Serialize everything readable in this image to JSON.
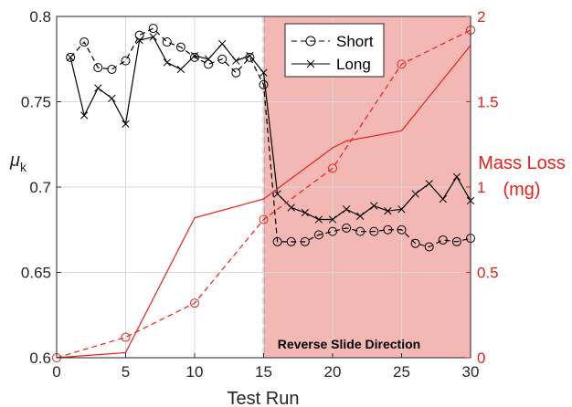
{
  "chart_data": {
    "type": "line",
    "title": "",
    "xlabel": "Test Run",
    "ylabel_left": "μ",
    "ylabel_left_subscript": "k",
    "ylabel_right_line1": "Mass Loss",
    "ylabel_right_line2": "(mg)",
    "xlim": [
      0,
      30
    ],
    "ylim_left": [
      0.6,
      0.8
    ],
    "ylim_right": [
      0,
      2
    ],
    "grid": true,
    "x_ticks": [
      0,
      5,
      10,
      15,
      20,
      25,
      30
    ],
    "x_tick_labels": [
      "0",
      "5",
      "10",
      "15",
      "20",
      "25",
      "30"
    ],
    "y_left_ticks": [
      0.6,
      0.65,
      0.7,
      0.75,
      0.8
    ],
    "y_left_tick_labels": [
      "0.6",
      "0.65",
      "0.7",
      "0.75",
      "0.8"
    ],
    "y_right_ticks": [
      0,
      0.5,
      1,
      1.5,
      2
    ],
    "y_right_tick_labels": [
      "0",
      "0.5",
      "1",
      "1.5",
      "2"
    ],
    "region": {
      "x_start": 15,
      "x_end": 30,
      "label": "Reverse Slide Direction",
      "color": "#f4b8b4"
    },
    "legend": {
      "placement": "top-right",
      "entries": [
        "Short",
        "Long"
      ]
    },
    "series": [
      {
        "name": "Short",
        "axis": "left",
        "marker": "circle",
        "dash": true,
        "color": "#000000",
        "x": [
          1,
          2,
          3,
          4,
          5,
          6,
          7,
          8,
          9,
          10,
          11,
          12,
          13,
          14,
          15,
          16,
          17,
          18,
          19,
          20,
          21,
          22,
          23,
          24,
          25,
          26,
          27,
          28,
          29,
          30
        ],
        "values": [
          0.776,
          0.785,
          0.77,
          0.769,
          0.774,
          0.789,
          0.793,
          0.785,
          0.782,
          0.776,
          0.772,
          0.775,
          0.767,
          0.776,
          0.76,
          0.668,
          0.668,
          0.668,
          0.672,
          0.674,
          0.676,
          0.674,
          0.674,
          0.675,
          0.675,
          0.667,
          0.665,
          0.669,
          0.668,
          0.67
        ]
      },
      {
        "name": "Long",
        "axis": "left",
        "marker": "x",
        "dash": false,
        "color": "#000000",
        "x": [
          1,
          2,
          3,
          4,
          5,
          6,
          7,
          8,
          9,
          10,
          11,
          12,
          13,
          14,
          15,
          16,
          17,
          18,
          19,
          20,
          21,
          22,
          23,
          24,
          25,
          26,
          27,
          28,
          29,
          30
        ],
        "values": [
          0.776,
          0.742,
          0.758,
          0.752,
          0.737,
          0.786,
          0.788,
          0.773,
          0.769,
          0.777,
          0.775,
          0.784,
          0.774,
          0.777,
          0.767,
          0.696,
          0.688,
          0.685,
          0.681,
          0.681,
          0.687,
          0.683,
          0.689,
          0.686,
          0.687,
          0.696,
          0.702,
          0.693,
          0.706,
          0.692
        ]
      },
      {
        "name": "Mass Loss (Short)",
        "axis": "right",
        "marker": "circle",
        "dash": true,
        "color": "#e8201a",
        "x": [
          0,
          5,
          10,
          15,
          20,
          25,
          30
        ],
        "values": [
          0.0,
          0.12,
          0.32,
          0.81,
          1.11,
          1.72,
          1.92
        ]
      },
      {
        "name": "Mass Loss (Long)",
        "axis": "right",
        "marker": "none",
        "dash": false,
        "color": "#e8201a",
        "x": [
          0,
          5,
          10,
          15,
          20,
          21,
          25,
          30
        ],
        "values": [
          0.0,
          0.03,
          0.82,
          0.93,
          1.23,
          1.27,
          1.33,
          1.83
        ]
      }
    ]
  }
}
